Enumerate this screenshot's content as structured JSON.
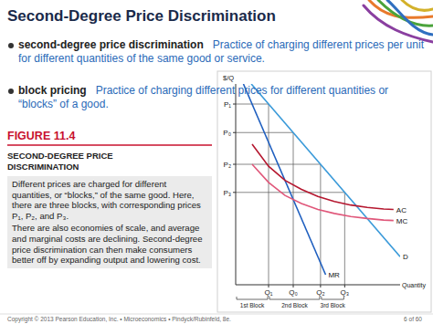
{
  "slide": {
    "title": "Second-Degree Price Discrimination",
    "bullets": [
      {
        "term": "second-degree price discrimination",
        "definition": "Practice of charging different prices per unit for different quantities of the same good or service."
      },
      {
        "term": "block pricing",
        "definition": "Practice of charging different prices for different quantities or “blocks” of a good."
      }
    ],
    "figure": {
      "label": "FIGURE 11.4",
      "title": "SECOND-DEGREE PRICE DISCRIMINATION",
      "caption": [
        "Different prices are charged for different quantities, or “blocks,” of the same good. Here, there are three blocks, with corresponding prices P₁, P₂, and P₃.",
        "There are also economies of scale, and average and marginal costs are declining. Second-degree price discrimination can then make consumers better off by expanding output and lowering cost."
      ]
    },
    "footer": {
      "copyright": "Copyright © 2013 Pearson Education, Inc. • Microeconomics • Pindyck/Rubinfeld, 8e.",
      "page": "6 of 60"
    }
  },
  "chart_data": {
    "type": "line",
    "y_label": "$/Q",
    "x_label": "Quantity",
    "xlim": [
      0,
      10
    ],
    "ylim": [
      0,
      10
    ],
    "xticks": [
      {
        "value": 2.0,
        "label": "Q₁"
      },
      {
        "value": 3.5,
        "label": "Q₀"
      },
      {
        "value": 5.16,
        "label": "Q₂"
      },
      {
        "value": 6.63,
        "label": "Q₃"
      }
    ],
    "yticks": [
      {
        "value": 9.0,
        "label": "P₁"
      },
      {
        "value": 7.58,
        "label": "P₀"
      },
      {
        "value": 6.0,
        "label": "P₂"
      },
      {
        "value": 4.6,
        "label": "P₃"
      }
    ],
    "grid": false,
    "series": [
      {
        "name": "D",
        "color": "#3a9ad9",
        "x": [
          0.95,
          10
        ],
        "values": [
          10.0,
          1.4
        ]
      },
      {
        "name": "MR",
        "color": "#1f5fbf",
        "x": [
          0.47,
          5.47
        ],
        "values": [
          10.0,
          0.5
        ]
      },
      {
        "name": "AC",
        "color": "#b5172f",
        "x": [
          1,
          2,
          3,
          4,
          5,
          6,
          7,
          8,
          9,
          9.6
        ],
        "values": [
          7.0,
          5.9,
          5.2,
          4.75,
          4.4,
          4.15,
          3.97,
          3.85,
          3.77,
          3.75
        ]
      },
      {
        "name": "MC",
        "color": "#e0577a",
        "x": [
          1,
          2,
          3,
          4,
          5,
          6,
          7,
          8,
          9,
          9.6
        ],
        "values": [
          6.0,
          5.1,
          4.45,
          4.05,
          3.75,
          3.55,
          3.4,
          3.3,
          3.22,
          3.2
        ]
      }
    ],
    "blocks": [
      {
        "label": "1st Block",
        "from": 0,
        "to": 2.0
      },
      {
        "label": "2nd Block",
        "from": 2.0,
        "to": 5.16
      },
      {
        "label": "3rd Block",
        "from": 5.16,
        "to": 6.63
      }
    ]
  }
}
